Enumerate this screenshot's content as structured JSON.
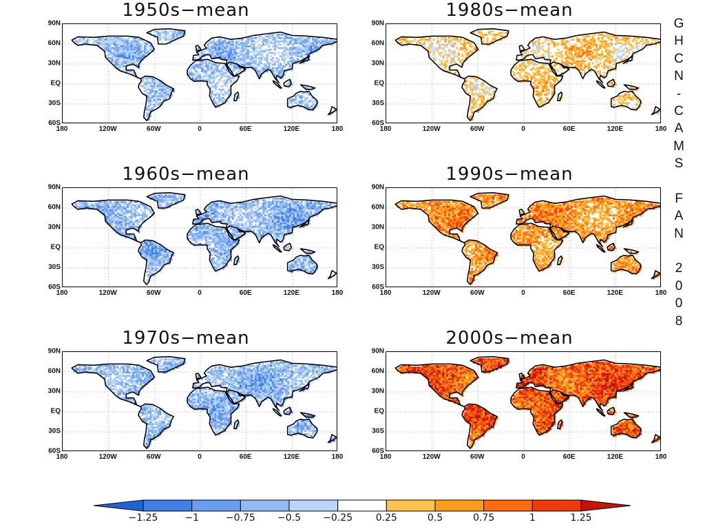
{
  "side_text": [
    "G",
    "H",
    "C",
    "N",
    "-",
    "C",
    "A",
    "M",
    "S",
    "",
    "F",
    "A",
    "N",
    "",
    "2",
    "0",
    "0",
    "8"
  ],
  "lat_ticks": [
    "90N",
    "60N",
    "30N",
    "EQ",
    "30S",
    "60S"
  ],
  "lon_ticks": [
    "180",
    "120W",
    "60W",
    "0",
    "60E",
    "120E",
    "180"
  ],
  "panels": [
    {
      "title": "1950s−mean",
      "anomaly_bias": -0.45
    },
    {
      "title": "1980s−mean",
      "anomaly_bias": 0.2
    },
    {
      "title": "1960s−mean",
      "anomaly_bias": -0.55
    },
    {
      "title": "1990s−mean",
      "anomaly_bias": 0.55
    },
    {
      "title": "1970s−mean",
      "anomaly_bias": -0.55
    },
    {
      "title": "2000s−mean",
      "anomaly_bias": 0.95
    }
  ],
  "colorbar": {
    "labels": [
      "−1.25",
      "−1",
      "−0.75",
      "−0.5",
      "−0.25",
      "0.25",
      "0.5",
      "0.75",
      "1",
      "1.25"
    ],
    "colors": [
      "#1e63d8",
      "#3f7fe6",
      "#6a9ef0",
      "#93bcf5",
      "#bcd6fa",
      "#ffffff",
      "#ffc24d",
      "#ff9c1a",
      "#ff6a10",
      "#f03a0c",
      "#c81406"
    ]
  }
}
